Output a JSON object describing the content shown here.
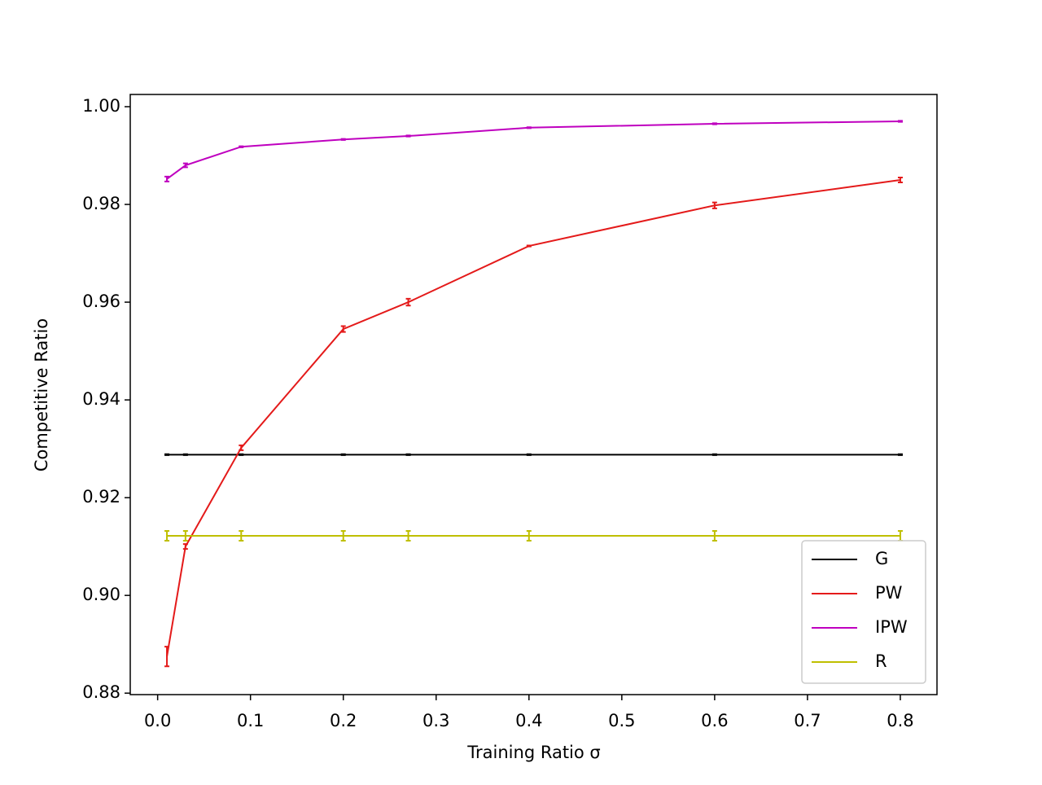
{
  "chart_data": {
    "type": "line",
    "x_label": "Training Ratio σ",
    "y_label": "Competitive Ratio",
    "x": [
      0.01,
      0.03,
      0.09,
      0.2,
      0.27,
      0.4,
      0.6,
      0.8
    ],
    "series": [
      {
        "name": "G",
        "color": "#000000",
        "values": [
          0.9288,
          0.9288,
          0.9288,
          0.9288,
          0.9288,
          0.9288,
          0.9288,
          0.9288
        ],
        "errors": [
          0.0001,
          0.0001,
          0.0001,
          0.0001,
          0.0001,
          0.0001,
          0.0001,
          0.0001
        ]
      },
      {
        "name": "PW",
        "color": "#e41a1a",
        "values": [
          0.8875,
          0.91,
          0.9302,
          0.9545,
          0.96,
          0.9715,
          0.9798,
          0.985
        ],
        "errors": [
          0.002,
          0.0005,
          0.0005,
          0.0006,
          0.0007,
          0.0001,
          0.0006,
          0.0005
        ]
      },
      {
        "name": "IPW",
        "color": "#bf00bf",
        "values": [
          0.9852,
          0.988,
          0.9918,
          0.9933,
          0.994,
          0.9957,
          0.9965,
          0.997
        ],
        "errors": [
          0.0005,
          0.0004,
          0.0001,
          0.0001,
          0.0001,
          0.0001,
          0.0001,
          0.0001
        ]
      },
      {
        "name": "R",
        "color": "#bfbf00",
        "values": [
          0.9122,
          0.9122,
          0.9122,
          0.9122,
          0.9122,
          0.9122,
          0.9122,
          0.9122
        ],
        "errors": [
          0.001,
          0.001,
          0.001,
          0.001,
          0.001,
          0.001,
          0.001,
          0.001
        ]
      }
    ],
    "xlim": [
      -0.0295,
      0.8395
    ],
    "xticks": [
      {
        "value": 0,
        "label": "0.0"
      },
      0.1,
      0.2,
      0.3,
      0.4,
      0.5,
      0.6,
      0.7,
      0.8
    ],
    "ylim": [
      0.8797,
      1.0025
    ],
    "yticks": [
      {
        "value": 0.88,
        "label": "0.88"
      },
      {
        "value": 0.9,
        "label": "0.90"
      },
      0.92,
      0.94,
      0.96,
      0.98,
      {
        "value": 1,
        "label": "1.00"
      }
    ],
    "legend": "lower right",
    "grid": false
  }
}
